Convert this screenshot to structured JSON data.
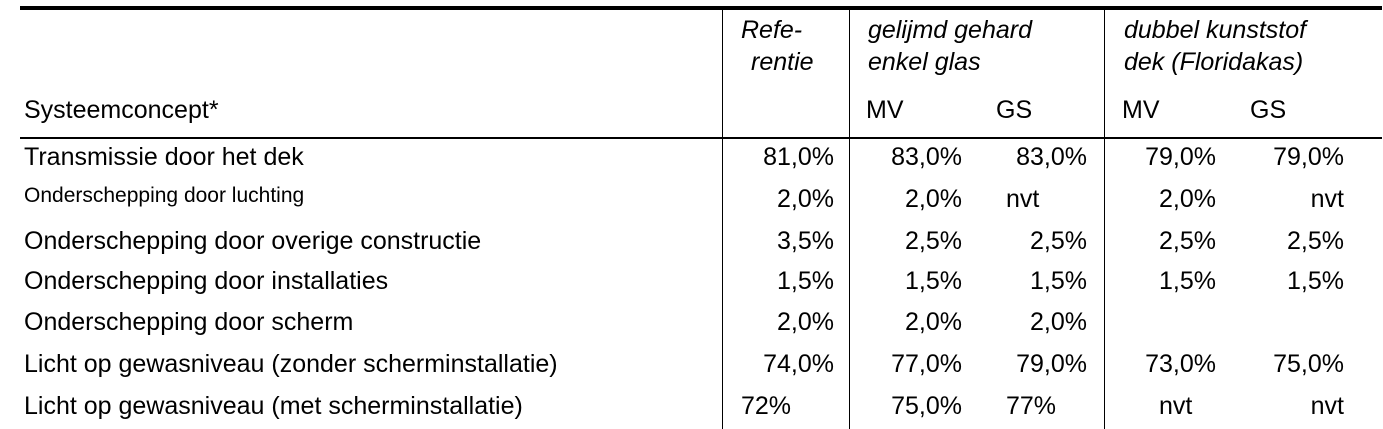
{
  "header": {
    "row_label": "Systeemconcept*",
    "ref_line1": "Refe-",
    "ref_line2": "rentie",
    "group1_line1": "gelijmd gehard",
    "group1_line2": "enkel glas",
    "group2_line1": "dubbel kunststof",
    "group2_line2": "dek (Floridakas)",
    "sub_mv": "MV",
    "sub_gs": "GS"
  },
  "rows": [
    {
      "label": "Transmissie door het dek",
      "ref": "81,0%",
      "g1_mv": "83,0%",
      "g1_gs": "83,0%",
      "g2_mv": "79,0%",
      "g2_gs": "79,0%"
    },
    {
      "label": "Onderschepping door luchting",
      "ref": "2,0%",
      "g1_mv": "2,0%",
      "g1_gs": "nvt",
      "g2_mv": "2,0%",
      "g2_gs": "nvt"
    },
    {
      "label": "Onderschepping door overige constructie",
      "ref": "3,5%",
      "g1_mv": "2,5%",
      "g1_gs": "2,5%",
      "g2_mv": "2,5%",
      "g2_gs": "2,5%"
    },
    {
      "label": "Onderschepping door installaties",
      "ref": "1,5%",
      "g1_mv": "1,5%",
      "g1_gs": "1,5%",
      "g2_mv": "1,5%",
      "g2_gs": "1,5%"
    },
    {
      "label": "Onderschepping door scherm",
      "ref": "2,0%",
      "g1_mv": "2,0%",
      "g1_gs": "2,0%",
      "g2_mv": "",
      "g2_gs": ""
    },
    {
      "label": "Licht op gewasniveau (zonder scherminstallatie)",
      "ref": "74,0%",
      "g1_mv": "77,0%",
      "g1_gs": "79,0%",
      "g2_mv": "73,0%",
      "g2_gs": "75,0%"
    },
    {
      "label": "Licht op gewasniveau (met scherminstallatie)",
      "ref": "72%",
      "g1_mv": "75,0%",
      "g1_gs": "77%",
      "g2_mv": "nvt",
      "g2_gs": "nvt"
    }
  ]
}
